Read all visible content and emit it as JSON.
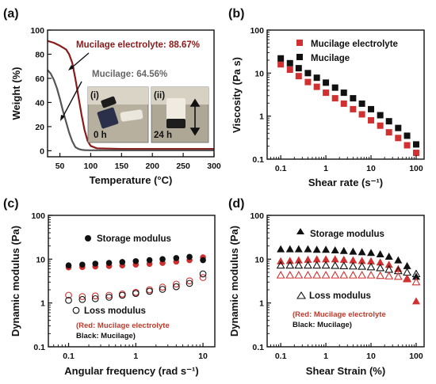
{
  "chart_data": [
    {
      "id": "a",
      "panel_label": "(a)",
      "type": "line",
      "xlabel": "Temperature (°C)",
      "ylabel": "Weight (%)",
      "xlim": [
        30,
        300
      ],
      "ylim": [
        -5,
        100
      ],
      "xticks": [
        "50",
        "100",
        "150",
        "200",
        "250",
        "300"
      ],
      "yticks": [
        "0",
        "20",
        "40",
        "60",
        "80",
        "100"
      ],
      "series": [
        {
          "name": "Mucilage electrolyte",
          "color": "#8b1a1a",
          "x": [
            30,
            40,
            50,
            60,
            65,
            70,
            75,
            80,
            85,
            90,
            95,
            100,
            110,
            150,
            200,
            250,
            300
          ],
          "y": [
            91,
            89.5,
            87,
            84,
            80,
            73,
            60,
            45,
            30,
            17,
            8,
            4,
            2,
            1.5,
            1.5,
            1.5,
            1.5
          ]
        },
        {
          "name": "Mucilage",
          "color": "#555555",
          "x": [
            30,
            35,
            40,
            45,
            50,
            55,
            60,
            65,
            70,
            75,
            80,
            85,
            90,
            100,
            150,
            200,
            250,
            300
          ],
          "y": [
            67,
            64,
            59,
            52,
            43,
            33,
            24,
            15,
            8,
            3,
            1.5,
            0.8,
            0.5,
            0.4,
            0.3,
            0.3,
            0.3,
            0.3
          ]
        }
      ],
      "annotations": [
        {
          "text": "Mucilage electrolyte: 88.67%",
          "color": "#8b1a1a"
        },
        {
          "text": "Mucilage: 64.56%",
          "color": "#666666"
        }
      ],
      "insets": [
        {
          "label": "(i)",
          "caption": "0 h"
        },
        {
          "label": "(ii)",
          "caption": "24 h"
        }
      ]
    },
    {
      "id": "b",
      "panel_label": "(b)",
      "type": "scatter",
      "xlabel": "Shear rate (s⁻¹)",
      "ylabel": "Viscosity (Pa s)",
      "xscale": "log",
      "yscale": "log",
      "xlim": [
        0.05,
        150
      ],
      "ylim": [
        0.1,
        100
      ],
      "xticks": [
        "0.1",
        "1",
        "10",
        "100"
      ],
      "yticks": [
        "0.1",
        "1",
        "10",
        "100"
      ],
      "legend": {
        "position": "top-right"
      },
      "series": [
        {
          "name": "Mucilage electrolyte",
          "color": "#d03030",
          "marker": "square",
          "x": [
            0.1,
            0.16,
            0.25,
            0.4,
            0.63,
            1,
            1.6,
            2.5,
            4,
            6.3,
            10,
            16,
            25,
            40,
            63,
            100
          ],
          "y": [
            16,
            12,
            8.5,
            6.2,
            4.8,
            3.5,
            2.6,
            1.95,
            1.45,
            1.1,
            0.8,
            0.6,
            0.42,
            0.31,
            0.21,
            0.14
          ]
        },
        {
          "name": "Mucilage",
          "color": "#111111",
          "marker": "square",
          "x": [
            0.1,
            0.16,
            0.25,
            0.4,
            0.63,
            1,
            1.6,
            2.5,
            4,
            6.3,
            10,
            16,
            25,
            40,
            63,
            100
          ],
          "y": [
            22,
            17,
            13,
            10,
            7.8,
            6,
            4.6,
            3.5,
            2.6,
            1.95,
            1.45,
            1.05,
            0.76,
            0.53,
            0.35,
            0.22
          ]
        }
      ]
    },
    {
      "id": "c",
      "panel_label": "(c)",
      "type": "scatter",
      "xlabel": "Angular frequency (rad s⁻¹)",
      "ylabel": "Dynamic modulus (Pa)",
      "xscale": "log",
      "yscale": "log",
      "xlim": [
        0.05,
        15
      ],
      "ylim": [
        0.1,
        100
      ],
      "xticks": [
        "0.1",
        "1",
        "10"
      ],
      "yticks": [
        "0.1",
        "1",
        "10",
        "100"
      ],
      "series": [
        {
          "name": "Storage modulus (Mucilage electrolyte)",
          "color": "#d03030",
          "marker": "filled-circle",
          "x": [
            0.1,
            0.16,
            0.25,
            0.4,
            0.63,
            1,
            1.6,
            2.5,
            4,
            6.3,
            10
          ],
          "y": [
            6.5,
            6.6,
            6.8,
            7.0,
            7.2,
            7.5,
            7.8,
            8.2,
            8.8,
            9.5,
            11
          ]
        },
        {
          "name": "Storage modulus (Mucilage)",
          "color": "#111111",
          "marker": "filled-circle",
          "x": [
            0.1,
            0.16,
            0.25,
            0.4,
            0.63,
            1,
            1.6,
            2.5,
            4,
            6.3,
            10
          ],
          "y": [
            7.2,
            7.5,
            7.9,
            8.2,
            8.6,
            9.0,
            9.5,
            10,
            10.6,
            11.3,
            9.5
          ]
        },
        {
          "name": "Loss modulus (Mucilage electrolyte)",
          "color": "#d03030",
          "marker": "open-circle",
          "x": [
            0.1,
            0.16,
            0.25,
            0.4,
            0.63,
            1,
            1.6,
            2.5,
            4,
            6.3,
            10
          ],
          "y": [
            1.5,
            1.4,
            1.45,
            1.5,
            1.6,
            1.75,
            2.0,
            2.3,
            2.7,
            3.2,
            3.8
          ]
        },
        {
          "name": "Loss modulus (Mucilage)",
          "color": "#111111",
          "marker": "open-circle",
          "x": [
            0.1,
            0.16,
            0.25,
            0.4,
            0.63,
            1,
            1.6,
            2.5,
            4,
            6.3,
            10
          ],
          "y": [
            1.15,
            1.2,
            1.25,
            1.35,
            1.5,
            1.65,
            1.85,
            2.05,
            2.35,
            2.8,
            4.6
          ]
        }
      ],
      "annotations": [
        {
          "text": "Storage modulus",
          "color": "#111111"
        },
        {
          "text": "Loss modulus",
          "color": "#111111"
        },
        {
          "text": "(Red: Mucilage electrolyte",
          "color": "#c0392b"
        },
        {
          "text": "Black: Mucilage)",
          "color": "#111111"
        }
      ]
    },
    {
      "id": "d",
      "panel_label": "(d)",
      "type": "scatter",
      "xlabel": "Shear Strain (%)",
      "ylabel": "Dynamic modulus (Pa)",
      "xscale": "log",
      "yscale": "log",
      "xlim": [
        0.05,
        150
      ],
      "ylim": [
        0.1,
        100
      ],
      "xticks": [
        "0.1",
        "1",
        "10",
        "100"
      ],
      "yticks": [
        "0.1",
        "1",
        "10",
        "100"
      ],
      "series": [
        {
          "name": "Storage modulus (Mucilage)",
          "color": "#111111",
          "marker": "filled-triangle",
          "x": [
            0.1,
            0.16,
            0.25,
            0.4,
            0.63,
            1,
            1.6,
            2.5,
            4,
            6.3,
            10,
            16,
            25,
            40,
            63,
            100
          ],
          "y": [
            17,
            17,
            17,
            17,
            16.5,
            16.5,
            16,
            15.5,
            15,
            14.5,
            14,
            13,
            11.5,
            9.5,
            7,
            4
          ]
        },
        {
          "name": "Storage modulus (Mucilage electrolyte)",
          "color": "#d03030",
          "marker": "filled-triangle",
          "x": [
            0.1,
            0.16,
            0.25,
            0.4,
            0.63,
            1,
            1.6,
            2.5,
            4,
            6.3,
            10,
            16,
            25,
            40,
            63,
            100
          ],
          "y": [
            9,
            9.2,
            9.5,
            9.8,
            10,
            10,
            10,
            9.8,
            9.5,
            9.2,
            9,
            8.5,
            7.5,
            6,
            3.5,
            1.1
          ]
        },
        {
          "name": "Loss modulus (Mucilage)",
          "color": "#111111",
          "marker": "open-triangle",
          "x": [
            0.1,
            0.16,
            0.25,
            0.4,
            0.63,
            1,
            1.6,
            2.5,
            4,
            6.3,
            10,
            16,
            25,
            40,
            63,
            100
          ],
          "y": [
            7.2,
            7.2,
            7.2,
            7.2,
            7.2,
            7.2,
            7.1,
            7.0,
            6.9,
            6.8,
            6.6,
            6.3,
            5.8,
            5.4,
            5.0,
            4.6
          ]
        },
        {
          "name": "Loss modulus (Mucilage electrolyte)",
          "color": "#d03030",
          "marker": "open-triangle",
          "x": [
            0.1,
            0.16,
            0.25,
            0.4,
            0.63,
            1,
            1.6,
            2.5,
            4,
            6.3,
            10,
            16,
            25,
            40,
            63,
            100
          ],
          "y": [
            4.3,
            4.3,
            4.3,
            4.3,
            4.3,
            4.3,
            4.3,
            4.3,
            4.3,
            4.3,
            4.3,
            4.2,
            4.1,
            4.0,
            3.6,
            3.0
          ]
        }
      ],
      "annotations": [
        {
          "text": "Storage modulus",
          "color": "#111111"
        },
        {
          "text": "Loss modulus",
          "color": "#111111"
        },
        {
          "text": "(Red: Mucilage electrolyte",
          "color": "#c0392b"
        },
        {
          "text": "Black: Mucilage)",
          "color": "#111111"
        }
      ]
    }
  ]
}
